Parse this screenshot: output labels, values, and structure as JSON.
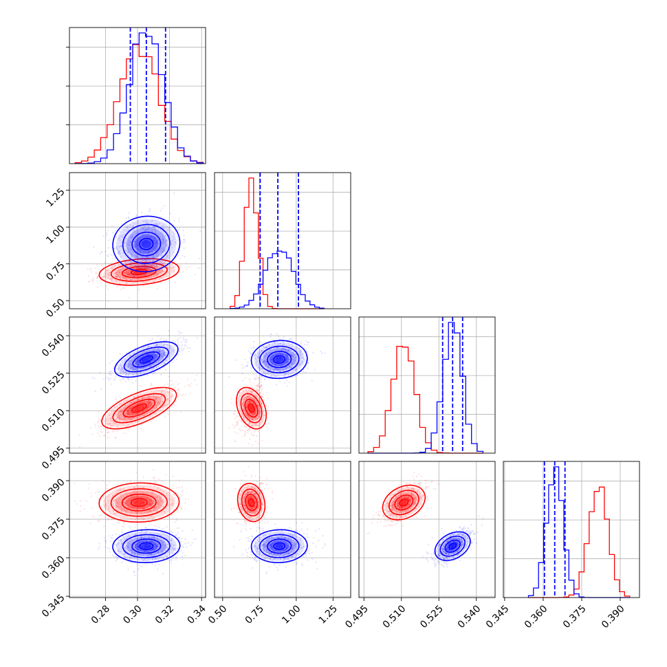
{
  "chart_data": {
    "type": "corner",
    "colors": {
      "series_a": "#ff0000",
      "series_b": "#0000ff"
    },
    "grid": true,
    "parameters": [
      {
        "ticks": [
          "0.28",
          "0.30",
          "0.32",
          "0.34"
        ],
        "tick_values": [
          0.28,
          0.3,
          0.32,
          0.34
        ],
        "range": [
          0.2575,
          0.3425
        ],
        "red": {
          "mean": 0.301,
          "std": 0.0125
        },
        "blue": {
          "mean": 0.3055,
          "std": 0.0105,
          "quantiles": [
            0.2955,
            0.3055,
            0.3175
          ]
        }
      },
      {
        "ticks": [
          "0.50",
          "0.75",
          "1.00",
          "1.25"
        ],
        "tick_values": [
          0.5,
          0.75,
          1.0,
          1.25
        ],
        "range": [
          0.445,
          1.37
        ],
        "red": {
          "mean": 0.695,
          "std": 0.045
        },
        "blue": {
          "mean": 0.885,
          "std": 0.095,
          "quantiles": [
            0.755,
            0.875,
            1.015
          ]
        }
      },
      {
        "ticks": [
          "0.495",
          "0.510",
          "0.525",
          "0.540"
        ],
        "tick_values": [
          0.495,
          0.51,
          0.525,
          0.54
        ],
        "range": [
          0.493,
          0.5475
        ],
        "red": {
          "mean": 0.511,
          "std": 0.0045
        },
        "blue": {
          "mean": 0.5305,
          "std": 0.0038,
          "quantiles": [
            0.5265,
            0.5305,
            0.5345
          ]
        }
      },
      {
        "ticks": [
          "0.345",
          "0.360",
          "0.375",
          "0.390"
        ],
        "tick_values": [
          0.345,
          0.36,
          0.375,
          0.39
        ],
        "range": [
          0.3445,
          0.3975
        ],
        "red": {
          "mean": 0.3815,
          "std": 0.0038
        },
        "blue": {
          "mean": 0.3645,
          "std": 0.0032,
          "quantiles": [
            0.3605,
            0.3645,
            0.3685
          ]
        }
      }
    ],
    "correlations": {
      "red": {
        "1-0": 0.25,
        "2-0": 0.75,
        "2-1": 0.25,
        "3-0": 0.05,
        "3-1": 0.15,
        "3-2": 0.6
      },
      "blue": {
        "1-0": 0.15,
        "2-0": 0.7,
        "2-1": 0.1,
        "3-0": 0.05,
        "3-1": 0.05,
        "3-2": 0.65
      }
    }
  }
}
